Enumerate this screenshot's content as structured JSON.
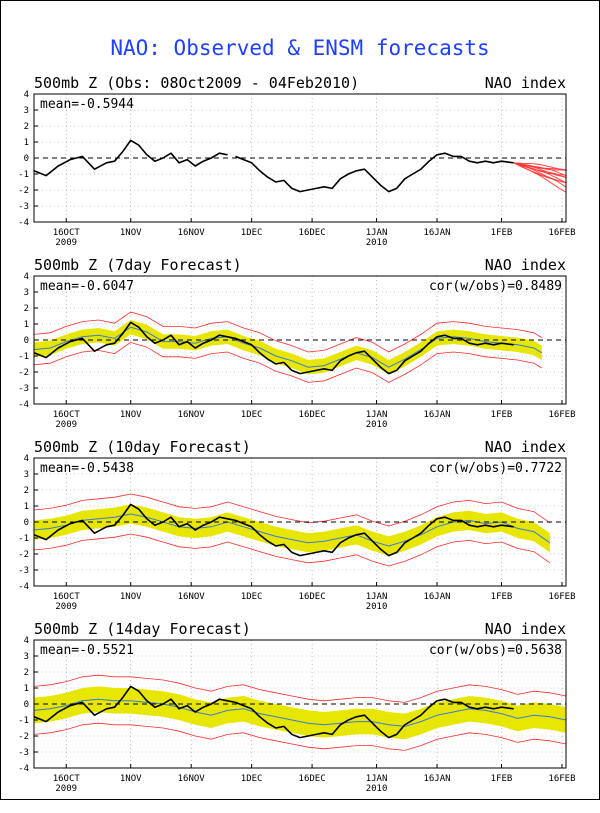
{
  "page_title": "NAO: Observed & ENSM forecasts",
  "colors": {
    "title": "#1f3fff",
    "observed": "#000000",
    "ensemble_mean": "#3a7bd5",
    "spread_band": "#e6e600",
    "members": "#ff2a2a",
    "forecast_tail": "#ff3c3c",
    "grid": "#999999"
  },
  "chart_data": [
    {
      "type": "line",
      "title": "500mb Z (Obs: 08Oct2009 - 04Feb2010)",
      "right_title": "NAO index",
      "mean_label": "mean=-0.5944",
      "cor_label": "",
      "ylim": [
        -4,
        4
      ],
      "y_ticks": [
        "4",
        "3",
        "2",
        "1",
        "0",
        "-1",
        "-2",
        "-3",
        "-4"
      ],
      "x_ticks": [
        {
          "day": 8,
          "label": "16OCT",
          "sub": "2009"
        },
        {
          "day": 24,
          "label": "1NOV",
          "sub": ""
        },
        {
          "day": 39,
          "label": "16NOV",
          "sub": ""
        },
        {
          "day": 54,
          "label": "1DEC",
          "sub": ""
        },
        {
          "day": 69,
          "label": "16DEC",
          "sub": ""
        },
        {
          "day": 85,
          "label": "1JAN",
          "sub": "2010"
        },
        {
          "day": 100,
          "label": "16JAN",
          "sub": ""
        },
        {
          "day": 116,
          "label": "1FEB",
          "sub": ""
        },
        {
          "day": 131,
          "label": "16FEB",
          "sub": ""
        }
      ],
      "x_range_days": [
        0,
        132
      ],
      "observed": {
        "day": [
          0,
          3,
          6,
          9,
          12,
          15,
          18,
          20,
          22,
          24,
          26,
          28,
          30,
          32,
          34,
          36,
          38,
          40,
          42,
          44,
          46,
          48,
          50,
          52,
          54,
          56,
          58,
          60,
          62,
          64,
          66,
          68,
          70,
          72,
          74,
          76,
          78,
          80,
          82,
          84,
          86,
          88,
          90,
          92,
          94,
          96,
          98,
          100,
          102,
          104,
          106,
          108,
          110,
          112,
          114,
          116,
          119
        ],
        "value": [
          -0.8,
          -1.1,
          -0.5,
          -0.1,
          0.1,
          -0.7,
          -0.3,
          -0.2,
          0.4,
          1.1,
          0.8,
          0.2,
          -0.2,
          0.0,
          0.3,
          -0.3,
          -0.1,
          -0.5,
          -0.2,
          0.0,
          0.3,
          0.2,
          0.1,
          -0.1,
          -0.3,
          -0.8,
          -1.2,
          -1.5,
          -1.4,
          -1.9,
          -2.1,
          -2.0,
          -1.9,
          -1.8,
          -1.9,
          -1.3,
          -1.0,
          -0.8,
          -0.7,
          -1.2,
          -1.7,
          -2.1,
          -1.9,
          -1.3,
          -1.0,
          -0.7,
          -0.2,
          0.2,
          0.3,
          0.1,
          0.1,
          -0.2,
          -0.3,
          -0.2,
          -0.3,
          -0.2,
          -0.3
        ]
      },
      "gaps_after_day": [
        48
      ],
      "forecast_members": {
        "start_day": 119,
        "end_day": 132,
        "end_values": [
          -0.6,
          -0.8,
          -0.9,
          -1.0,
          -1.1,
          -1.2,
          -1.3,
          -1.4,
          -1.5,
          -1.7,
          -1.8,
          -2.0
        ]
      }
    },
    {
      "type": "line",
      "title": "500mb Z (7day Forecast)",
      "right_title": "NAO index",
      "mean_label": "mean=-0.6047",
      "cor_label": "cor(w/obs)=0.8489",
      "ylim": [
        -4,
        4
      ],
      "y_ticks": [
        "4",
        "3",
        "2",
        "1",
        "0",
        "-1",
        "-2",
        "-3",
        "-4"
      ],
      "x_ticks": [
        {
          "day": 8,
          "label": "16OCT",
          "sub": "2009"
        },
        {
          "day": 24,
          "label": "1NOV",
          "sub": ""
        },
        {
          "day": 39,
          "label": "16NOV",
          "sub": ""
        },
        {
          "day": 54,
          "label": "1DEC",
          "sub": ""
        },
        {
          "day": 69,
          "label": "16DEC",
          "sub": ""
        },
        {
          "day": 85,
          "label": "1JAN",
          "sub": "2010"
        },
        {
          "day": 100,
          "label": "16JAN",
          "sub": ""
        },
        {
          "day": 116,
          "label": "1FEB",
          "sub": ""
        },
        {
          "day": 131,
          "label": "16FEB",
          "sub": ""
        }
      ],
      "x_range_days": [
        0,
        132
      ],
      "observed": {
        "day": [
          0,
          3,
          6,
          9,
          12,
          15,
          18,
          20,
          22,
          24,
          26,
          28,
          30,
          32,
          34,
          36,
          38,
          40,
          42,
          44,
          46,
          48,
          50,
          52,
          54,
          56,
          58,
          60,
          62,
          64,
          66,
          68,
          70,
          72,
          74,
          76,
          78,
          80,
          82,
          84,
          86,
          88,
          90,
          92,
          94,
          96,
          98,
          100,
          102,
          104,
          106,
          108,
          110,
          112,
          114,
          116,
          119
        ],
        "value": [
          -0.8,
          -1.1,
          -0.5,
          -0.1,
          0.1,
          -0.7,
          -0.3,
          -0.2,
          0.4,
          1.1,
          0.8,
          0.2,
          -0.2,
          0.0,
          0.3,
          -0.3,
          -0.1,
          -0.5,
          -0.2,
          0.0,
          0.3,
          0.2,
          0.1,
          -0.1,
          -0.3,
          -0.8,
          -1.2,
          -1.5,
          -1.4,
          -1.9,
          -2.1,
          -2.0,
          -1.9,
          -1.8,
          -1.9,
          -1.3,
          -1.0,
          -0.8,
          -0.7,
          -1.2,
          -1.7,
          -2.1,
          -1.9,
          -1.3,
          -1.0,
          -0.7,
          -0.2,
          0.2,
          0.3,
          0.1,
          0.1,
          -0.2,
          -0.3,
          -0.2,
          -0.3,
          -0.2,
          -0.3
        ]
      },
      "forecast": {
        "day": [
          0,
          4,
          8,
          12,
          16,
          20,
          24,
          28,
          32,
          36,
          40,
          44,
          48,
          52,
          56,
          60,
          64,
          68,
          72,
          76,
          80,
          84,
          88,
          92,
          96,
          100,
          104,
          108,
          112,
          116,
          120,
          124,
          126
        ],
        "mean": [
          -0.6,
          -0.5,
          -0.1,
          0.2,
          0.3,
          0.1,
          0.8,
          0.5,
          -0.1,
          -0.1,
          -0.2,
          0.1,
          0.2,
          -0.2,
          -0.5,
          -1.0,
          -1.3,
          -1.7,
          -1.6,
          -1.2,
          -0.8,
          -1.1,
          -1.7,
          -1.2,
          -0.6,
          0.1,
          0.2,
          0.1,
          -0.1,
          -0.2,
          -0.3,
          -0.5,
          -0.8
        ],
        "band_half": 0.45,
        "outer_half": 0.95
      }
    },
    {
      "type": "line",
      "title": "500mb Z (10day Forecast)",
      "right_title": "NAO index",
      "mean_label": "mean=-0.5438",
      "cor_label": "cor(w/obs)=0.7722",
      "ylim": [
        -4,
        4
      ],
      "y_ticks": [
        "4",
        "3",
        "2",
        "1",
        "0",
        "-1",
        "-2",
        "-3",
        "-4"
      ],
      "x_ticks": [
        {
          "day": 8,
          "label": "16OCT",
          "sub": "2009"
        },
        {
          "day": 24,
          "label": "1NOV",
          "sub": ""
        },
        {
          "day": 39,
          "label": "16NOV",
          "sub": ""
        },
        {
          "day": 54,
          "label": "1DEC",
          "sub": ""
        },
        {
          "day": 69,
          "label": "16DEC",
          "sub": ""
        },
        {
          "day": 85,
          "label": "1JAN",
          "sub": "2010"
        },
        {
          "day": 100,
          "label": "16JAN",
          "sub": ""
        },
        {
          "day": 116,
          "label": "1FEB",
          "sub": ""
        },
        {
          "day": 131,
          "label": "16FEB",
          "sub": ""
        }
      ],
      "x_range_days": [
        0,
        132
      ],
      "observed": {
        "day": [
          0,
          3,
          6,
          9,
          12,
          15,
          18,
          20,
          22,
          24,
          26,
          28,
          30,
          32,
          34,
          36,
          38,
          40,
          42,
          44,
          46,
          48,
          50,
          52,
          54,
          56,
          58,
          60,
          62,
          64,
          66,
          68,
          70,
          72,
          74,
          76,
          78,
          80,
          82,
          84,
          86,
          88,
          90,
          92,
          94,
          96,
          98,
          100,
          102,
          104,
          106,
          108,
          110,
          112,
          114,
          116,
          119
        ],
        "value": [
          -0.8,
          -1.1,
          -0.5,
          -0.1,
          0.1,
          -0.7,
          -0.3,
          -0.2,
          0.4,
          1.1,
          0.8,
          0.2,
          -0.2,
          0.0,
          0.3,
          -0.3,
          -0.1,
          -0.5,
          -0.2,
          0.0,
          0.3,
          0.2,
          0.1,
          -0.1,
          -0.3,
          -0.8,
          -1.2,
          -1.5,
          -1.4,
          -1.9,
          -2.1,
          -2.0,
          -1.9,
          -1.8,
          -1.9,
          -1.3,
          -1.0,
          -0.8,
          -0.7,
          -1.2,
          -1.7,
          -2.1,
          -1.9,
          -1.3,
          -1.0,
          -0.7,
          -0.2,
          0.2,
          0.3,
          0.1,
          0.1,
          -0.2,
          -0.3,
          -0.2,
          -0.3,
          -0.2,
          -0.3
        ]
      },
      "forecast": {
        "day": [
          0,
          4,
          8,
          12,
          16,
          20,
          24,
          28,
          32,
          36,
          40,
          44,
          48,
          52,
          56,
          60,
          64,
          68,
          72,
          76,
          80,
          84,
          88,
          92,
          96,
          100,
          104,
          108,
          112,
          116,
          120,
          124,
          128
        ],
        "mean": [
          -0.5,
          -0.4,
          -0.2,
          0.1,
          0.2,
          0.3,
          0.5,
          0.3,
          0.0,
          -0.3,
          -0.4,
          -0.3,
          0.0,
          -0.3,
          -0.6,
          -0.9,
          -1.1,
          -1.3,
          -1.2,
          -1.0,
          -0.8,
          -1.2,
          -1.5,
          -1.2,
          -0.8,
          -0.3,
          0.0,
          0.1,
          -0.1,
          0.0,
          -0.4,
          -0.6,
          -1.3
        ],
        "band_half": 0.6,
        "outer_half": 1.25
      }
    },
    {
      "type": "line",
      "title": "500mb Z (14day Forecast)",
      "right_title": "NAO index",
      "mean_label": "mean=-0.5521",
      "cor_label": "cor(w/obs)=0.5638",
      "ylim": [
        -4,
        4
      ],
      "y_ticks": [
        "4",
        "3",
        "2",
        "1",
        "0",
        "-1",
        "-2",
        "-3",
        "-4"
      ],
      "x_ticks": [
        {
          "day": 8,
          "label": "16OCT",
          "sub": "2009"
        },
        {
          "day": 24,
          "label": "1NOV",
          "sub": ""
        },
        {
          "day": 39,
          "label": "16NOV",
          "sub": ""
        },
        {
          "day": 54,
          "label": "1DEC",
          "sub": ""
        },
        {
          "day": 69,
          "label": "16DEC",
          "sub": ""
        },
        {
          "day": 85,
          "label": "1JAN",
          "sub": "2010"
        },
        {
          "day": 100,
          "label": "16JAN",
          "sub": ""
        },
        {
          "day": 116,
          "label": "1FEB",
          "sub": ""
        },
        {
          "day": 131,
          "label": "16FEB",
          "sub": ""
        }
      ],
      "x_range_days": [
        0,
        132
      ],
      "observed": {
        "day": [
          0,
          3,
          6,
          9,
          12,
          15,
          18,
          20,
          22,
          24,
          26,
          28,
          30,
          32,
          34,
          36,
          38,
          40,
          42,
          44,
          46,
          48,
          50,
          52,
          54,
          56,
          58,
          60,
          62,
          64,
          66,
          68,
          70,
          72,
          74,
          76,
          78,
          80,
          82,
          84,
          86,
          88,
          90,
          92,
          94,
          96,
          98,
          100,
          102,
          104,
          106,
          108,
          110,
          112,
          114,
          116,
          119
        ],
        "value": [
          -0.8,
          -1.1,
          -0.5,
          -0.1,
          0.1,
          -0.7,
          -0.3,
          -0.2,
          0.4,
          1.1,
          0.8,
          0.2,
          -0.2,
          0.0,
          0.3,
          -0.3,
          -0.1,
          -0.5,
          -0.2,
          0.0,
          0.3,
          0.2,
          0.1,
          -0.1,
          -0.3,
          -0.8,
          -1.2,
          -1.5,
          -1.4,
          -1.9,
          -2.1,
          -2.0,
          -1.9,
          -1.8,
          -1.9,
          -1.3,
          -1.0,
          -0.8,
          -0.7,
          -1.2,
          -1.7,
          -2.1,
          -1.9,
          -1.3,
          -1.0,
          -0.7,
          -0.2,
          0.2,
          0.3,
          0.1,
          0.1,
          -0.2,
          -0.3,
          -0.2,
          -0.3,
          -0.2,
          -0.3
        ]
      },
      "forecast": {
        "day": [
          0,
          4,
          8,
          12,
          16,
          20,
          24,
          28,
          32,
          36,
          40,
          44,
          48,
          52,
          56,
          60,
          64,
          68,
          72,
          76,
          80,
          84,
          88,
          92,
          96,
          100,
          104,
          108,
          112,
          116,
          120,
          124,
          128,
          132
        ],
        "mean": [
          -0.4,
          -0.3,
          -0.1,
          0.2,
          0.3,
          0.2,
          0.2,
          0.1,
          0.0,
          -0.2,
          -0.5,
          -0.7,
          -0.4,
          -0.3,
          -0.6,
          -0.8,
          -1.0,
          -1.2,
          -1.3,
          -1.2,
          -1.1,
          -1.1,
          -1.3,
          -1.4,
          -1.1,
          -0.7,
          -0.5,
          -0.3,
          -0.4,
          -0.6,
          -0.9,
          -0.7,
          -0.8,
          -1.0
        ],
        "band_half": 0.8,
        "outer_half": 1.5
      }
    }
  ]
}
